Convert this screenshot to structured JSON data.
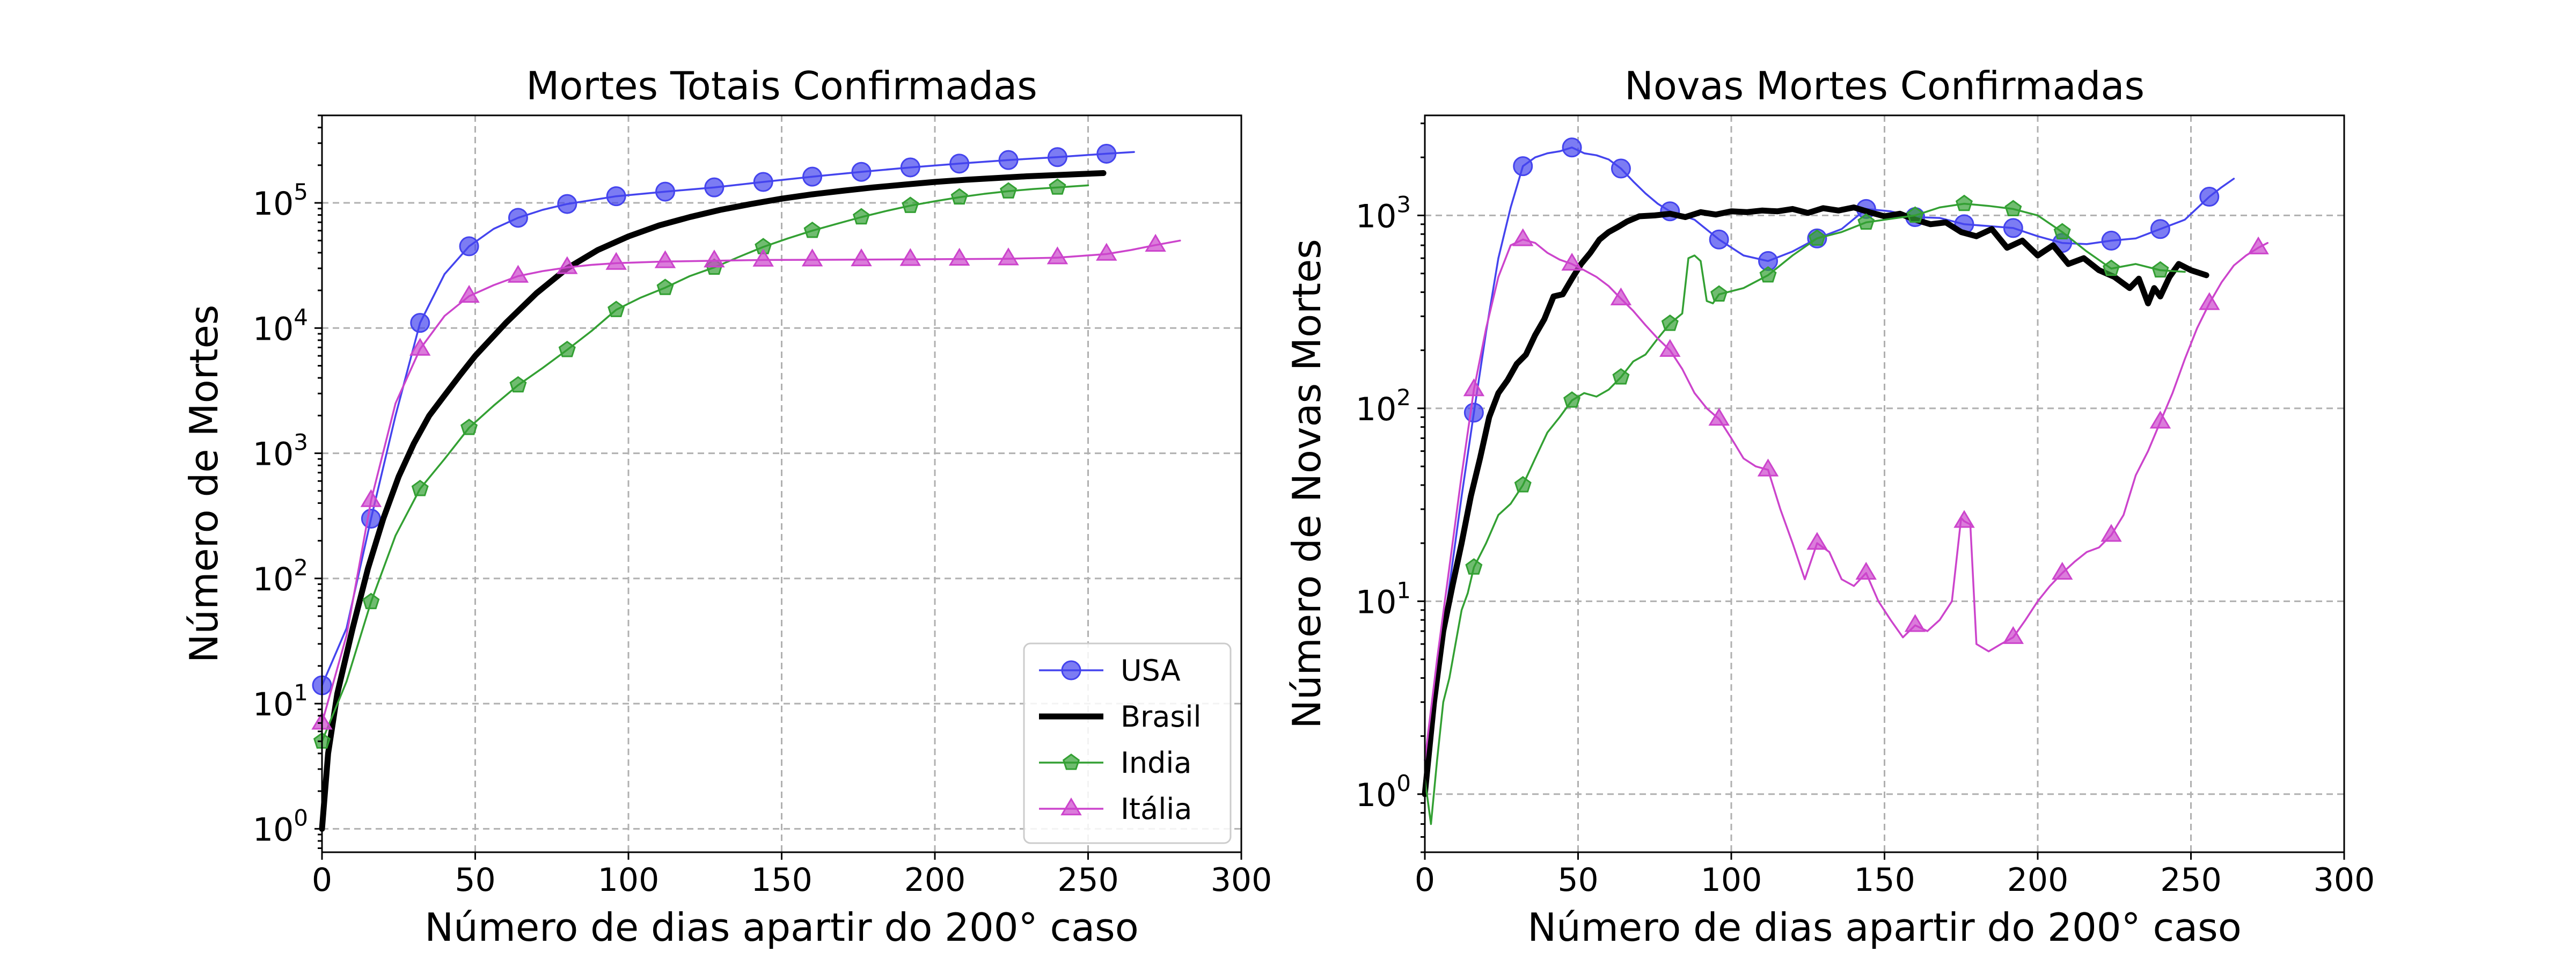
{
  "colors": {
    "USA": "#4444ee",
    "Brasil": "#000000",
    "India": "#33a033",
    "Italia": "#cc44cc"
  },
  "chart_data": [
    {
      "type": "line",
      "title": "Mortes Totais Confirmadas",
      "xlabel": "Número de dias apartir do 200° caso",
      "ylabel": "Número de Mortes",
      "xlim": [
        0,
        300
      ],
      "ylim": [
        0.65,
        500000
      ],
      "yscale": "log",
      "xticks": [
        0,
        50,
        100,
        150,
        200,
        250,
        300
      ],
      "yticks": [
        1,
        10,
        100,
        1000,
        10000,
        100000
      ],
      "grid": true,
      "legend": "lower-right",
      "series": [
        {
          "name": "USA",
          "marker": "circle",
          "linewidth": "thin",
          "x": [
            0,
            8,
            16,
            24,
            32,
            40,
            48,
            56,
            64,
            72,
            80,
            96,
            112,
            128,
            144,
            160,
            176,
            192,
            208,
            224,
            240,
            256,
            265
          ],
          "y": [
            14,
            40,
            300,
            2000,
            11000,
            27000,
            45000,
            62000,
            76000,
            88000,
            98000,
            113000,
            123000,
            133000,
            147000,
            162000,
            177000,
            192000,
            206000,
            220000,
            232000,
            247000,
            255000
          ],
          "markers_x": [
            0,
            16,
            32,
            48,
            64,
            80,
            96,
            112,
            128,
            144,
            160,
            176,
            192,
            208,
            224,
            240,
            256
          ]
        },
        {
          "name": "Brasil",
          "marker": "none",
          "linewidth": "thick",
          "x": [
            0,
            2,
            5,
            10,
            15,
            20,
            25,
            30,
            35,
            40,
            45,
            50,
            60,
            70,
            80,
            90,
            100,
            110,
            120,
            130,
            140,
            150,
            160,
            170,
            180,
            190,
            200,
            210,
            220,
            230,
            240,
            255
          ],
          "y": [
            1,
            4,
            12,
            40,
            120,
            300,
            650,
            1200,
            2000,
            2900,
            4200,
            6000,
            11000,
            19000,
            30000,
            42000,
            54000,
            66000,
            77000,
            88000,
            98000,
            108000,
            117000,
            125000,
            133000,
            140000,
            147000,
            153000,
            158000,
            163000,
            167000,
            173000
          ]
        },
        {
          "name": "India",
          "marker": "pentagon",
          "linewidth": "thin",
          "x": [
            0,
            8,
            16,
            24,
            32,
            40,
            48,
            56,
            64,
            72,
            80,
            88,
            96,
            104,
            112,
            120,
            128,
            136,
            144,
            152,
            160,
            168,
            176,
            184,
            192,
            200,
            208,
            216,
            224,
            232,
            240,
            250
          ],
          "y": [
            5,
            15,
            65,
            220,
            520,
            900,
            1600,
            2400,
            3500,
            4800,
            6700,
            9500,
            14000,
            17500,
            21000,
            26000,
            30500,
            37000,
            44500,
            52000,
            60000,
            68000,
            77000,
            86000,
            95000,
            103000,
            111000,
            118000,
            124000,
            129000,
            133000,
            138000
          ],
          "markers_x": [
            0,
            16,
            32,
            48,
            64,
            80,
            96,
            112,
            128,
            144,
            160,
            176,
            192,
            208,
            224,
            240
          ]
        },
        {
          "name": "Itália",
          "marker": "triangle",
          "linewidth": "thin",
          "x": [
            0,
            8,
            16,
            24,
            32,
            40,
            48,
            56,
            64,
            72,
            80,
            88,
            96,
            112,
            128,
            144,
            160,
            176,
            192,
            208,
            224,
            240,
            256,
            264,
            272,
            280
          ],
          "y": [
            7,
            35,
            420,
            2500,
            6800,
            12500,
            18000,
            22000,
            26000,
            28500,
            30500,
            32000,
            33000,
            34000,
            34500,
            35000,
            35100,
            35200,
            35400,
            35600,
            35800,
            36500,
            39000,
            42000,
            46000,
            50000
          ],
          "markers_x": [
            0,
            16,
            32,
            48,
            64,
            80,
            96,
            112,
            128,
            144,
            160,
            176,
            192,
            208,
            224,
            240,
            256,
            272
          ]
        }
      ]
    },
    {
      "type": "line",
      "title": "Novas Mortes Confirmadas",
      "xlabel": "Número de dias apartir do 200° caso",
      "ylabel": "Número de Novas Mortes",
      "xlim": [
        0,
        300
      ],
      "ylim": [
        0.5,
        3300
      ],
      "yscale": "log",
      "xticks": [
        0,
        50,
        100,
        150,
        200,
        250,
        300
      ],
      "yticks": [
        1,
        10,
        100,
        1000
      ],
      "grid": true,
      "series": [
        {
          "name": "USA",
          "marker": "circle",
          "linewidth": "thin",
          "x": [
            0,
            4,
            8,
            12,
            16,
            20,
            24,
            28,
            32,
            36,
            40,
            44,
            48,
            52,
            56,
            60,
            64,
            68,
            72,
            76,
            80,
            88,
            96,
            104,
            112,
            120,
            128,
            136,
            144,
            152,
            160,
            168,
            176,
            184,
            192,
            200,
            208,
            216,
            224,
            232,
            240,
            248,
            256,
            260,
            264
          ],
          "y": [
            1.5,
            4,
            12,
            35,
            95,
            250,
            600,
            1100,
            1800,
            2000,
            2100,
            2150,
            2250,
            2100,
            2050,
            1950,
            1750,
            1500,
            1300,
            1150,
            1050,
            950,
            750,
            620,
            580,
            650,
            760,
            850,
            1080,
            1050,
            980,
            970,
            900,
            880,
            860,
            780,
            720,
            710,
            740,
            760,
            850,
            950,
            1250,
            1400,
            1550
          ],
          "markers_x": [
            16,
            32,
            48,
            64,
            80,
            96,
            112,
            128,
            144,
            160,
            176,
            192,
            208,
            224,
            240,
            256
          ]
        },
        {
          "name": "Brasil",
          "marker": "none",
          "linewidth": "thick",
          "x": [
            0,
            3,
            6,
            9,
            12,
            15,
            18,
            21,
            24,
            27,
            30,
            33,
            36,
            39,
            42,
            45,
            48,
            51,
            54,
            57,
            60,
            63,
            66,
            70,
            75,
            80,
            85,
            90,
            95,
            100,
            105,
            110,
            115,
            120,
            125,
            130,
            135,
            140,
            145,
            150,
            155,
            160,
            165,
            170,
            175,
            180,
            185,
            190,
            195,
            200,
            205,
            210,
            215,
            220,
            225,
            230,
            233,
            236,
            238,
            240,
            243,
            246,
            250,
            255
          ],
          "y": [
            1,
            3,
            7,
            12,
            20,
            35,
            55,
            90,
            120,
            140,
            170,
            190,
            240,
            290,
            380,
            390,
            470,
            560,
            640,
            750,
            820,
            870,
            930,
            990,
            1000,
            1020,
            980,
            1040,
            1010,
            1050,
            1040,
            1060,
            1050,
            1080,
            1030,
            1090,
            1060,
            1100,
            1040,
            990,
            1020,
            950,
            900,
            920,
            820,
            780,
            850,
            680,
            740,
            620,
            700,
            560,
            600,
            520,
            480,
            420,
            470,
            350,
            420,
            380,
            480,
            560,
            520,
            490
          ]
        },
        {
          "name": "India",
          "marker": "pentagon",
          "linewidth": "thin",
          "x": [
            0,
            2,
            4,
            6,
            8,
            10,
            12,
            14,
            16,
            20,
            24,
            28,
            32,
            36,
            40,
            44,
            48,
            52,
            56,
            60,
            64,
            68,
            72,
            76,
            80,
            84,
            86,
            88,
            90,
            92,
            94,
            96,
            104,
            112,
            120,
            128,
            136,
            144,
            152,
            160,
            168,
            176,
            184,
            192,
            200,
            208,
            216,
            224,
            232,
            240,
            248
          ],
          "y": [
            1.2,
            0.7,
            1.5,
            3,
            4,
            6,
            9,
            11,
            15,
            20,
            28,
            32,
            40,
            55,
            75,
            90,
            110,
            120,
            115,
            125,
            145,
            175,
            190,
            230,
            275,
            310,
            600,
            620,
            580,
            360,
            350,
            390,
            420,
            490,
            620,
            760,
            820,
            920,
            960,
            1000,
            1100,
            1150,
            1120,
            1080,
            1000,
            820,
            650,
            530,
            560,
            520,
            510
          ],
          "markers_x": [
            16,
            32,
            48,
            64,
            80,
            96,
            112,
            128,
            144,
            160,
            176,
            192,
            208,
            224,
            240
          ]
        },
        {
          "name": "Itália",
          "marker": "triangle",
          "linewidth": "thin",
          "x": [
            0,
            4,
            8,
            12,
            16,
            20,
            24,
            28,
            32,
            36,
            40,
            44,
            48,
            52,
            56,
            60,
            64,
            68,
            72,
            76,
            80,
            84,
            88,
            92,
            96,
            100,
            104,
            108,
            112,
            116,
            120,
            124,
            128,
            132,
            136,
            140,
            144,
            148,
            152,
            156,
            160,
            164,
            168,
            172,
            175,
            176,
            178,
            180,
            184,
            188,
            192,
            196,
            200,
            204,
            208,
            212,
            216,
            220,
            224,
            228,
            232,
            236,
            240,
            244,
            248,
            252,
            256,
            260,
            264,
            268,
            272,
            275
          ],
          "y": [
            1.5,
            5,
            15,
            45,
            125,
            260,
            480,
            700,
            750,
            720,
            640,
            590,
            560,
            520,
            480,
            430,
            370,
            320,
            270,
            230,
            200,
            160,
            120,
            100,
            88,
            70,
            55,
            50,
            48,
            30,
            20,
            13,
            20,
            18,
            13,
            12,
            14,
            10,
            8,
            6.5,
            7.5,
            7,
            8,
            10,
            27,
            26,
            25,
            6,
            5.5,
            6,
            6.5,
            8,
            10,
            12,
            14,
            16,
            18,
            19,
            22,
            28,
            45,
            60,
            85,
            120,
            180,
            260,
            350,
            450,
            550,
            620,
            680,
            720
          ],
          "markers_x": [
            16,
            32,
            48,
            64,
            80,
            96,
            112,
            128,
            144,
            160,
            176,
            192,
            208,
            224,
            240,
            256,
            272
          ]
        }
      ]
    }
  ]
}
